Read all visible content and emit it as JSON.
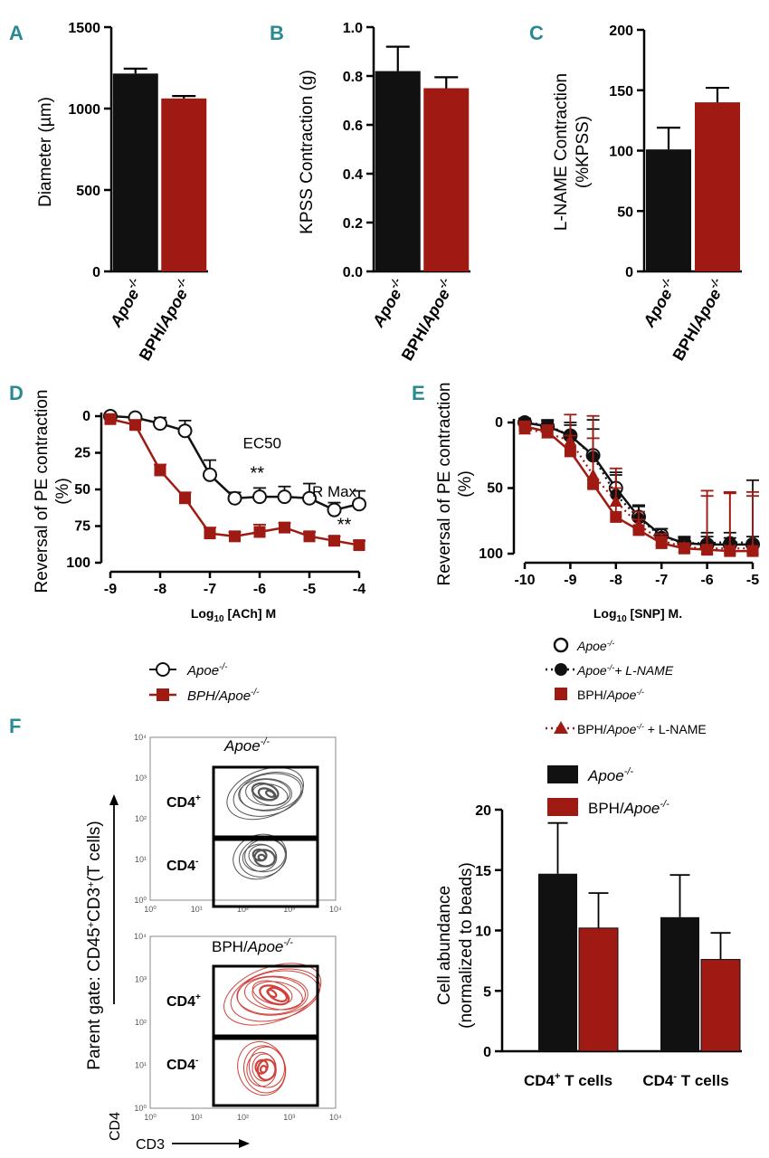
{
  "colors": {
    "apoe": "#111111",
    "bph": "#9e1a12",
    "letter": "#2a8a92",
    "contour_gray": "#555555",
    "contour_red": "#d0413a"
  },
  "chart_data": [
    {
      "id": "A",
      "type": "bar",
      "letter": "A",
      "ylabel": "Diameter (µm)",
      "ylim": [
        0,
        1500
      ],
      "yticks": [
        0,
        500,
        1000,
        1500
      ],
      "categories": [
        "Apoe-/-",
        "BPH/Apoe-/-"
      ],
      "values": [
        1215,
        1062
      ],
      "errors": [
        30,
        15
      ]
    },
    {
      "id": "B",
      "type": "bar",
      "letter": "B",
      "ylabel": "KPSS Contraction (g)",
      "ylim": [
        0,
        1.0
      ],
      "yticks": [
        "0.0",
        "0.2",
        "0.4",
        "0.6",
        "0.8",
        "1.0"
      ],
      "categories": [
        "Apoe-/-",
        "BPH/Apoe-/-"
      ],
      "values": [
        0.82,
        0.75
      ],
      "errors": [
        0.1,
        0.045
      ]
    },
    {
      "id": "C",
      "type": "bar",
      "letter": "C",
      "ylabel": "L-NAME Contraction",
      "ylabel2": "(%KPSS)",
      "ylim": [
        0,
        200
      ],
      "yticks": [
        0,
        50,
        100,
        150,
        200
      ],
      "categories": [
        "Apoe-/-",
        "BPH/Apoe-/-"
      ],
      "values": [
        101,
        140
      ],
      "errors": [
        18,
        12
      ]
    },
    {
      "id": "D",
      "type": "line",
      "letter": "D",
      "ylabel": "Reversal of PE contraction",
      "ylabel2": "(%)",
      "xlabel": "Log10 [ACh] M",
      "xlim": [
        -9,
        -4
      ],
      "ylim": [
        0,
        100
      ],
      "y_inverted": true,
      "xticks": [
        -9,
        -8,
        -7,
        -6,
        -5,
        -4
      ],
      "yticks": [
        0,
        25,
        50,
        75,
        100
      ],
      "annotations": [
        {
          "text": "EC50",
          "x": -5.95,
          "y": 22
        },
        {
          "text": "**",
          "x": -6.05,
          "y": 43
        },
        {
          "text": "R Max",
          "x": -4.5,
          "y": 55
        },
        {
          "text": "**",
          "x": -4.3,
          "y": 78
        }
      ],
      "series": [
        {
          "name": "Apoe-/-",
          "marker": "circle-open",
          "x": [
            -9,
            -8.5,
            -8,
            -7.5,
            -7,
            -6.5,
            -6,
            -5.5,
            -5,
            -4.5,
            -4
          ],
          "y": [
            0,
            1,
            5,
            10,
            40,
            56,
            55,
            55,
            56,
            64,
            60
          ],
          "err": [
            2,
            2,
            4,
            7,
            10,
            4,
            6,
            7,
            10,
            5,
            9
          ]
        },
        {
          "name": "BPH/Apoe-/-",
          "marker": "square-filled",
          "x": [
            -9,
            -8.5,
            -8,
            -7.5,
            -7,
            -6.5,
            -6,
            -5.5,
            -5,
            -4.5,
            -4
          ],
          "y": [
            2,
            6,
            37,
            56,
            80,
            82,
            79,
            76,
            82,
            85,
            88
          ],
          "err": [
            2,
            3,
            4,
            4,
            4,
            3,
            5,
            3,
            3,
            3,
            3
          ]
        }
      ]
    },
    {
      "id": "E",
      "type": "line",
      "letter": "E",
      "ylabel": "Reversal of PE contraction",
      "ylabel2": "(%)",
      "xlabel": "Log10 [SNP] M.",
      "xlim": [
        -10,
        -5
      ],
      "ylim": [
        0,
        100
      ],
      "y_inverted": true,
      "xticks": [
        -10,
        -9,
        -8,
        -7,
        -6,
        -5
      ],
      "yticks": [
        0,
        50,
        100
      ],
      "series": [
        {
          "name": "Apoe-/-",
          "marker": "circle-open",
          "dash": false,
          "x": [
            -10,
            -9.5,
            -9,
            -8.5,
            -8,
            -7.5,
            -7,
            -6.5,
            -6,
            -5.5,
            -5
          ],
          "y": [
            0,
            3,
            10,
            25,
            50,
            72,
            86,
            92,
            93,
            93,
            93
          ],
          "err": [
            3,
            4,
            8,
            20,
            12,
            8,
            5,
            4,
            6,
            5,
            6
          ]
        },
        {
          "name": "Apoe-/-+ L-NAME",
          "marker": "circle-filled",
          "dash": true,
          "x": [
            -10,
            -9.5,
            -9,
            -8.5,
            -8,
            -7.5,
            -7,
            -6.5,
            -6,
            -5.5,
            -5
          ],
          "y": [
            0,
            2,
            10,
            26,
            55,
            73,
            87,
            92,
            92,
            91,
            92
          ],
          "err": [
            3,
            4,
            10,
            28,
            15,
            10,
            6,
            5,
            8,
            7,
            48
          ]
        },
        {
          "name": "BPH/Apoe-/-",
          "marker": "square-filled",
          "dash": false,
          "x": [
            -10,
            -9.5,
            -9,
            -8.5,
            -8,
            -7.5,
            -7,
            -6.5,
            -6,
            -5.5,
            -5
          ],
          "y": [
            3,
            7,
            22,
            47,
            72,
            82,
            92,
            96,
            97,
            98,
            98
          ],
          "err": [
            3,
            5,
            12,
            35,
            22,
            8,
            5,
            3,
            45,
            45,
            45
          ]
        },
        {
          "name": "BPH/Apoe-/- + L-NAME",
          "marker": "triangle-filled",
          "dash": true,
          "x": [
            -10,
            -9.5,
            -9,
            -8.5,
            -8,
            -7.5,
            -7,
            -6.5,
            -6,
            -5.5,
            -5
          ],
          "y": [
            5,
            8,
            14,
            40,
            60,
            78,
            90,
            95,
            96,
            96,
            96
          ],
          "err": [
            3,
            6,
            20,
            45,
            25,
            10,
            5,
            3,
            40,
            42,
            40
          ]
        }
      ]
    },
    {
      "id": "F_bar",
      "type": "bar",
      "letter": "F",
      "ylabel": "Cell abundance",
      "ylabel2": "(normalized to beads)",
      "ylim": [
        0,
        20
      ],
      "yticks": [
        0,
        5,
        10,
        15,
        20
      ],
      "categories": [
        "CD4+ T cells",
        "CD4- T cells"
      ],
      "series": [
        {
          "name": "Apoe-/-",
          "values": [
            14.7,
            11.1
          ],
          "errors": [
            4.2,
            3.5
          ]
        },
        {
          "name": "BPH/Apoe-/-",
          "values": [
            10.2,
            7.6
          ],
          "errors": [
            2.9,
            2.2
          ]
        }
      ]
    }
  ],
  "flow": {
    "ylabel": "Parent gate: CD45+CD3+(T cells)",
    "y_axis_name": "CD4",
    "x_axis_name": "CD3",
    "ticks": [
      "10⁰",
      "10¹",
      "10²",
      "10³",
      "10⁴"
    ],
    "gates": [
      "CD4+",
      "CD4-"
    ],
    "panels": [
      {
        "title": "Apoe-/-"
      },
      {
        "title": "BPH/Apoe-/-"
      }
    ]
  }
}
